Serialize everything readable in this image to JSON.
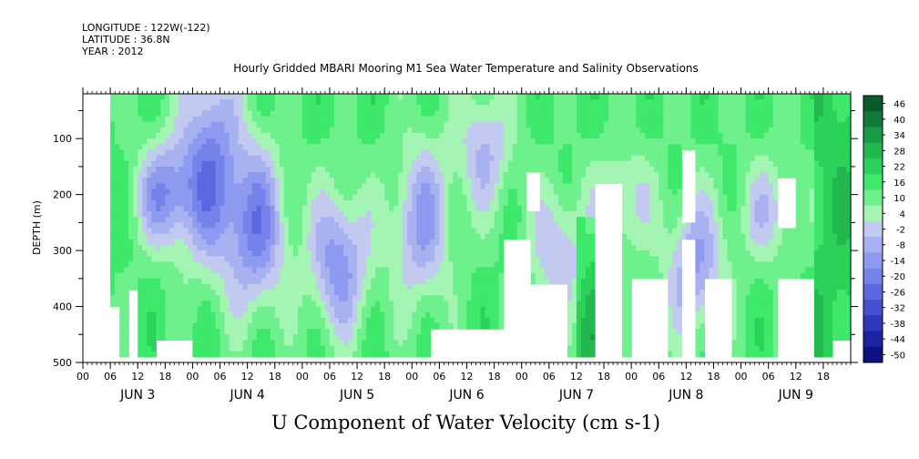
{
  "header": {
    "longitude": "LONGITUDE : 122W(-122)",
    "latitude": "LATITUDE : 36.8N",
    "year": "YEAR : 2012"
  },
  "chart_data": {
    "type": "heatmap",
    "title": "Hourly Gridded MBARI Mooring M1 Sea Water Temperature and Salinity Observations",
    "variable_label": "U Component of Water Velocity (cm s-1)",
    "ylabel": "DEPTH (m)",
    "y_axis": {
      "min": 20,
      "max": 500,
      "ticks": [
        100,
        200,
        300,
        400,
        500
      ],
      "inverted": true
    },
    "x_axis": {
      "range_hours": [
        0,
        168
      ],
      "hour_ticks": [
        "00",
        "06",
        "12",
        "18",
        "00",
        "06",
        "12",
        "18",
        "00",
        "06",
        "12",
        "18",
        "00",
        "06",
        "12",
        "18",
        "00",
        "06",
        "12",
        "18",
        "00",
        "06",
        "12",
        "18",
        "00",
        "06",
        "12",
        "18"
      ],
      "day_labels": [
        "JUN  3",
        "JUN  4",
        "JUN  5",
        "JUN  6",
        "JUN  7",
        "JUN  8",
        "JUN  9"
      ]
    },
    "colorbar": {
      "labels": [
        "46",
        "40",
        "34",
        "28",
        "22",
        "16",
        "10",
        "4",
        "-2",
        "-8",
        "-14",
        "-20",
        "-26",
        "-32",
        "-38",
        "-44",
        "-50"
      ],
      "colors": [
        "#0a5a2a",
        "#127a38",
        "#1a9a45",
        "#22b84f",
        "#2bd25a",
        "#3ee86a",
        "#6ef08c",
        "#a4f5b4",
        "#c2caf0",
        "#a8b2f0",
        "#8e9af0",
        "#7582ea",
        "#5b68e0",
        "#4450d0",
        "#2e38bc",
        "#1c24a4",
        "#0c1080"
      ]
    },
    "data_start_hour": 6,
    "field_shown": "hourly gridded U velocity by depth; values roughly -20 to 30 cm s-1, alternating positive (green) and negative (blue) bands"
  }
}
